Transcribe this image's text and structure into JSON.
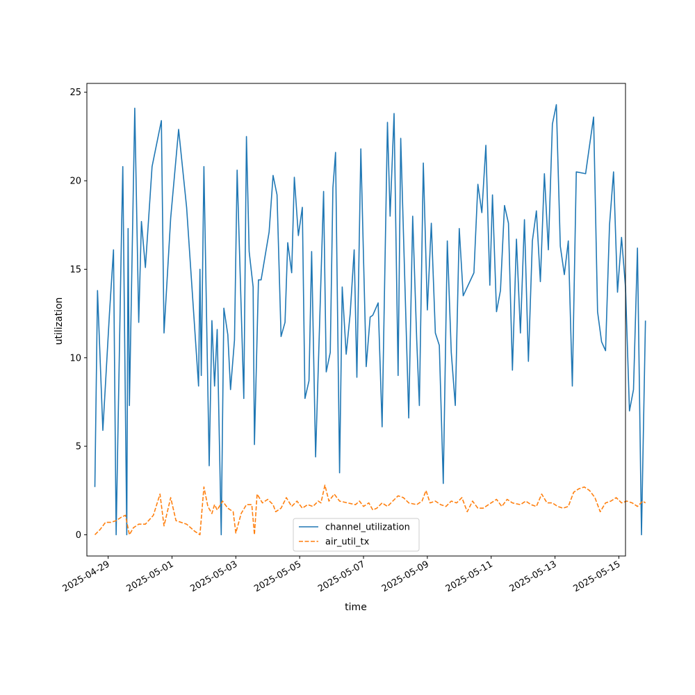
{
  "chart_data": {
    "type": "line",
    "title": "",
    "xlabel": "time",
    "ylabel": "utilization",
    "x_type": "date",
    "xlim": [
      "2025-04-28T08:00",
      "2025-05-15T05:00"
    ],
    "ylim": [
      -1.2,
      25.5
    ],
    "y_ticks": [
      0,
      5,
      10,
      15,
      20,
      25
    ],
    "x_ticks": [
      "2025-04-29",
      "2025-05-01",
      "2025-05-03",
      "2025-05-05",
      "2025-05-07",
      "2025-05-09",
      "2025-05-11",
      "2025-05-13",
      "2025-05-15"
    ],
    "grid": false,
    "legend_position": "lower center",
    "series": [
      {
        "name": "channel_utilization",
        "color": "#1f77b4",
        "dash": "solid",
        "points": [
          [
            "2025-04-28T14:00",
            2.7
          ],
          [
            "2025-04-28T16:00",
            13.8
          ],
          [
            "2025-04-28T20:00",
            5.9
          ],
          [
            "2025-04-29T01:00",
            12.5
          ],
          [
            "2025-04-29T04:00",
            16.1
          ],
          [
            "2025-04-29T06:00",
            0.0
          ],
          [
            "2025-04-29T10:00",
            17.0
          ],
          [
            "2025-04-29T11:00",
            20.8
          ],
          [
            "2025-04-29T14:00",
            0.0
          ],
          [
            "2025-04-29T15:00",
            17.3
          ],
          [
            "2025-04-29T16:00",
            7.3
          ],
          [
            "2025-04-29T20:00",
            24.1
          ],
          [
            "2025-04-29T23:00",
            12.0
          ],
          [
            "2025-04-30T01:00",
            17.7
          ],
          [
            "2025-04-30T04:00",
            15.1
          ],
          [
            "2025-04-30T09:00",
            20.8
          ],
          [
            "2025-04-30T16:00",
            23.4
          ],
          [
            "2025-04-30T18:00",
            11.4
          ],
          [
            "2025-04-30T23:00",
            17.9
          ],
          [
            "2025-05-01T05:00",
            22.9
          ],
          [
            "2025-05-01T11:00",
            18.5
          ],
          [
            "2025-05-01T20:00",
            8.4
          ],
          [
            "2025-05-01T21:00",
            15.0
          ],
          [
            "2025-05-01T22:00",
            9.0
          ],
          [
            "2025-05-02T00:00",
            20.8
          ],
          [
            "2025-05-02T04:00",
            3.9
          ],
          [
            "2025-05-02T06:00",
            12.1
          ],
          [
            "2025-05-02T08:00",
            8.4
          ],
          [
            "2025-05-02T10:00",
            11.6
          ],
          [
            "2025-05-02T13:00",
            0.0
          ],
          [
            "2025-05-02T15:00",
            12.8
          ],
          [
            "2025-05-02T18:00",
            11.3
          ],
          [
            "2025-05-02T20:00",
            8.2
          ],
          [
            "2025-05-02T23:00",
            11.0
          ],
          [
            "2025-05-03T01:00",
            20.6
          ],
          [
            "2025-05-03T06:00",
            7.7
          ],
          [
            "2025-05-03T08:00",
            22.5
          ],
          [
            "2025-05-03T10:00",
            16.0
          ],
          [
            "2025-05-03T13:00",
            14.0
          ],
          [
            "2025-05-03T14:00",
            5.1
          ],
          [
            "2025-05-03T17:00",
            14.4
          ],
          [
            "2025-05-03T19:00",
            14.4
          ],
          [
            "2025-05-04T01:00",
            17.1
          ],
          [
            "2025-05-04T04:00",
            20.3
          ],
          [
            "2025-05-04T07:00",
            19.2
          ],
          [
            "2025-05-04T10:00",
            11.2
          ],
          [
            "2025-05-04T13:00",
            12.0
          ],
          [
            "2025-05-04T15:00",
            16.5
          ],
          [
            "2025-05-04T18:00",
            14.8
          ],
          [
            "2025-05-04T20:00",
            20.2
          ],
          [
            "2025-05-04T23:00",
            16.9
          ],
          [
            "2025-05-05T02:00",
            18.5
          ],
          [
            "2025-05-05T04:00",
            7.7
          ],
          [
            "2025-05-05T07:00",
            8.7
          ],
          [
            "2025-05-05T09:00",
            16.0
          ],
          [
            "2025-05-05T12:00",
            4.4
          ],
          [
            "2025-05-05T18:00",
            19.4
          ],
          [
            "2025-05-05T20:00",
            9.2
          ],
          [
            "2025-05-05T23:00",
            10.3
          ],
          [
            "2025-05-06T01:00",
            19.6
          ],
          [
            "2025-05-06T03:00",
            21.6
          ],
          [
            "2025-05-06T06:00",
            3.5
          ],
          [
            "2025-05-06T08:00",
            14.0
          ],
          [
            "2025-05-06T11:00",
            10.2
          ],
          [
            "2025-05-06T14:00",
            12.5
          ],
          [
            "2025-05-06T17:00",
            16.1
          ],
          [
            "2025-05-06T19:00",
            8.9
          ],
          [
            "2025-05-06T22:00",
            21.8
          ],
          [
            "2025-05-07T02:00",
            9.5
          ],
          [
            "2025-05-07T05:00",
            12.3
          ],
          [
            "2025-05-07T07:00",
            12.4
          ],
          [
            "2025-05-07T11:00",
            13.1
          ],
          [
            "2025-05-07T14:00",
            6.1
          ],
          [
            "2025-05-07T18:00",
            23.3
          ],
          [
            "2025-05-07T20:00",
            18.0
          ],
          [
            "2025-05-07T23:00",
            23.8
          ],
          [
            "2025-05-08T02:00",
            9.0
          ],
          [
            "2025-05-08T04:00",
            22.4
          ],
          [
            "2025-05-08T10:00",
            6.6
          ],
          [
            "2025-05-08T13:00",
            18.0
          ],
          [
            "2025-05-08T16:00",
            11.0
          ],
          [
            "2025-05-08T18:00",
            7.3
          ],
          [
            "2025-05-08T21:00",
            21.0
          ],
          [
            "2025-05-09T00:00",
            12.7
          ],
          [
            "2025-05-09T03:00",
            17.6
          ],
          [
            "2025-05-09T06:00",
            11.4
          ],
          [
            "2025-05-09T09:00",
            10.7
          ],
          [
            "2025-05-09T12:00",
            2.9
          ],
          [
            "2025-05-09T15:00",
            16.6
          ],
          [
            "2025-05-09T18:00",
            10.3
          ],
          [
            "2025-05-09T21:00",
            7.3
          ],
          [
            "2025-05-10T00:00",
            17.3
          ],
          [
            "2025-05-10T03:00",
            13.5
          ],
          [
            "2025-05-10T11:00",
            14.8
          ],
          [
            "2025-05-10T14:00",
            19.8
          ],
          [
            "2025-05-10T17:00",
            18.2
          ],
          [
            "2025-05-10T20:00",
            22.0
          ],
          [
            "2025-05-10T23:00",
            14.1
          ],
          [
            "2025-05-11T01:00",
            19.2
          ],
          [
            "2025-05-11T04:00",
            12.6
          ],
          [
            "2025-05-11T07:00",
            13.8
          ],
          [
            "2025-05-11T10:00",
            18.6
          ],
          [
            "2025-05-11T13:00",
            17.6
          ],
          [
            "2025-05-11T16:00",
            9.3
          ],
          [
            "2025-05-11T19:00",
            16.7
          ],
          [
            "2025-05-11T22:00",
            11.4
          ],
          [
            "2025-05-12T01:00",
            17.8
          ],
          [
            "2025-05-12T04:00",
            9.8
          ],
          [
            "2025-05-12T07:00",
            16.6
          ],
          [
            "2025-05-12T10:00",
            18.3
          ],
          [
            "2025-05-12T13:00",
            14.3
          ],
          [
            "2025-05-12T16:00",
            20.4
          ],
          [
            "2025-05-12T19:00",
            16.1
          ],
          [
            "2025-05-12T22:00",
            23.2
          ],
          [
            "2025-05-13T01:00",
            24.3
          ],
          [
            "2025-05-13T04:00",
            16.3
          ],
          [
            "2025-05-13T07:00",
            14.7
          ],
          [
            "2025-05-13T10:00",
            16.6
          ],
          [
            "2025-05-13T13:00",
            8.4
          ],
          [
            "2025-05-13T16:00",
            20.5
          ],
          [
            "2025-05-13T23:00",
            20.4
          ],
          [
            "2025-05-14T02:00",
            22.0
          ],
          [
            "2025-05-14T05:00",
            23.6
          ],
          [
            "2025-05-14T08:00",
            12.6
          ],
          [
            "2025-05-14T11:00",
            10.9
          ],
          [
            "2025-05-14T14:00",
            10.4
          ],
          [
            "2025-05-14T17:00",
            17.5
          ],
          [
            "2025-05-14T20:00",
            20.5
          ],
          [
            "2025-05-14T23:00",
            13.7
          ],
          [
            "2025-05-15T02:00",
            16.8
          ],
          [
            "2025-05-15T05:00",
            14.0
          ],
          [
            "2025-05-15T08:00",
            7.0
          ],
          [
            "2025-05-15T11:00",
            8.2
          ],
          [
            "2025-05-15T14:00",
            16.2
          ],
          [
            "2025-05-15T17:00",
            0.0
          ],
          [
            "2025-05-15T20:00",
            12.1
          ]
        ]
      },
      {
        "name": "air_util_tx",
        "color": "#ff7f0e",
        "dash": "dashed",
        "points": [
          [
            "2025-04-28T14:00",
            0.0
          ],
          [
            "2025-04-28T18:00",
            0.3
          ],
          [
            "2025-04-28T22:00",
            0.7
          ],
          [
            "2025-04-29T02:00",
            0.7
          ],
          [
            "2025-04-29T06:00",
            0.8
          ],
          [
            "2025-04-29T10:00",
            1.0
          ],
          [
            "2025-04-29T13:00",
            1.1
          ],
          [
            "2025-04-29T16:00",
            0.0
          ],
          [
            "2025-04-29T19:00",
            0.4
          ],
          [
            "2025-04-29T23:00",
            0.6
          ],
          [
            "2025-04-30T04:00",
            0.6
          ],
          [
            "2025-04-30T10:00",
            1.1
          ],
          [
            "2025-04-30T15:00",
            2.3
          ],
          [
            "2025-04-30T18:00",
            0.5
          ],
          [
            "2025-04-30T23:00",
            2.1
          ],
          [
            "2025-05-01T03:00",
            0.8
          ],
          [
            "2025-05-01T11:00",
            0.6
          ],
          [
            "2025-05-01T17:00",
            0.2
          ],
          [
            "2025-05-01T21:00",
            0.0
          ],
          [
            "2025-05-02T00:00",
            2.7
          ],
          [
            "2025-05-02T03:00",
            1.6
          ],
          [
            "2025-05-02T06:00",
            1.2
          ],
          [
            "2025-05-02T08:00",
            1.7
          ],
          [
            "2025-05-02T10:00",
            1.4
          ],
          [
            "2025-05-02T14:00",
            1.9
          ],
          [
            "2025-05-02T18:00",
            1.5
          ],
          [
            "2025-05-02T22:00",
            1.3
          ],
          [
            "2025-05-03T00:00",
            0.1
          ],
          [
            "2025-05-03T04:00",
            1.2
          ],
          [
            "2025-05-03T08:00",
            1.7
          ],
          [
            "2025-05-03T12:00",
            1.7
          ],
          [
            "2025-05-03T14:00",
            0.0
          ],
          [
            "2025-05-03T16:00",
            2.3
          ],
          [
            "2025-05-03T20:00",
            1.8
          ],
          [
            "2025-05-04T00:00",
            2.0
          ],
          [
            "2025-05-04T04:00",
            1.7
          ],
          [
            "2025-05-04T06:00",
            1.3
          ],
          [
            "2025-05-04T10:00",
            1.5
          ],
          [
            "2025-05-04T14:00",
            2.1
          ],
          [
            "2025-05-04T18:00",
            1.6
          ],
          [
            "2025-05-04T22:00",
            1.9
          ],
          [
            "2025-05-05T02:00",
            1.5
          ],
          [
            "2025-05-05T06:00",
            1.7
          ],
          [
            "2025-05-05T10:00",
            1.6
          ],
          [
            "2025-05-05T14:00",
            1.9
          ],
          [
            "2025-05-05T16:00",
            1.8
          ],
          [
            "2025-05-05T19:00",
            2.8
          ],
          [
            "2025-05-05T22:00",
            1.9
          ],
          [
            "2025-05-06T02:00",
            2.3
          ],
          [
            "2025-05-06T06:00",
            1.9
          ],
          [
            "2025-05-06T12:00",
            1.8
          ],
          [
            "2025-05-06T18:00",
            1.7
          ],
          [
            "2025-05-06T21:00",
            1.9
          ],
          [
            "2025-05-07T00:00",
            1.6
          ],
          [
            "2025-05-07T04:00",
            1.8
          ],
          [
            "2025-05-07T07:00",
            1.4
          ],
          [
            "2025-05-07T10:00",
            1.5
          ],
          [
            "2025-05-07T14:00",
            1.8
          ],
          [
            "2025-05-07T18:00",
            1.6
          ],
          [
            "2025-05-07T22:00",
            1.9
          ],
          [
            "2025-05-08T02:00",
            2.2
          ],
          [
            "2025-05-08T06:00",
            2.1
          ],
          [
            "2025-05-08T10:00",
            1.8
          ],
          [
            "2025-05-08T16:00",
            1.7
          ],
          [
            "2025-05-08T20:00",
            1.9
          ],
          [
            "2025-05-08T23:00",
            2.5
          ],
          [
            "2025-05-09T02:00",
            1.8
          ],
          [
            "2025-05-09T06:00",
            1.9
          ],
          [
            "2025-05-09T10:00",
            1.7
          ],
          [
            "2025-05-09T14:00",
            1.6
          ],
          [
            "2025-05-09T18:00",
            1.9
          ],
          [
            "2025-05-09T22:00",
            1.8
          ],
          [
            "2025-05-10T02:00",
            2.1
          ],
          [
            "2025-05-10T06:00",
            1.3
          ],
          [
            "2025-05-10T10:00",
            1.9
          ],
          [
            "2025-05-10T14:00",
            1.5
          ],
          [
            "2025-05-10T18:00",
            1.5
          ],
          [
            "2025-05-11T00:00",
            1.8
          ],
          [
            "2025-05-11T04:00",
            2.0
          ],
          [
            "2025-05-11T08:00",
            1.6
          ],
          [
            "2025-05-11T12:00",
            2.0
          ],
          [
            "2025-05-11T16:00",
            1.8
          ],
          [
            "2025-05-11T22:00",
            1.7
          ],
          [
            "2025-05-12T02:00",
            1.9
          ],
          [
            "2025-05-12T06:00",
            1.7
          ],
          [
            "2025-05-12T10:00",
            1.6
          ],
          [
            "2025-05-12T14:00",
            2.3
          ],
          [
            "2025-05-12T18:00",
            1.8
          ],
          [
            "2025-05-12T22:00",
            1.8
          ],
          [
            "2025-05-13T02:00",
            1.6
          ],
          [
            "2025-05-13T06:00",
            1.5
          ],
          [
            "2025-05-13T10:00",
            1.6
          ],
          [
            "2025-05-13T14:00",
            2.4
          ],
          [
            "2025-05-13T18:00",
            2.6
          ],
          [
            "2025-05-13T22:00",
            2.7
          ],
          [
            "2025-05-14T02:00",
            2.5
          ],
          [
            "2025-05-14T06:00",
            2.1
          ],
          [
            "2025-05-14T10:00",
            1.3
          ],
          [
            "2025-05-14T14:00",
            1.8
          ],
          [
            "2025-05-14T18:00",
            1.9
          ],
          [
            "2025-05-14T22:00",
            2.1
          ],
          [
            "2025-05-15T02:00",
            1.8
          ],
          [
            "2025-05-15T06:00",
            1.9
          ],
          [
            "2025-05-15T10:00",
            1.8
          ],
          [
            "2025-05-15T14:00",
            1.6
          ],
          [
            "2025-05-15T18:00",
            1.9
          ],
          [
            "2025-05-15T20:00",
            1.8
          ]
        ]
      }
    ]
  }
}
